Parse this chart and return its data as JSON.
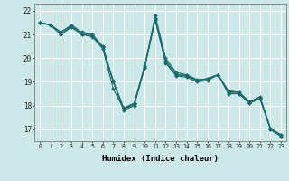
{
  "title": "",
  "xlabel": "Humidex (Indice chaleur)",
  "background_color": "#cce8e8",
  "grid_color": "#ffffff",
  "line_color": "#1a6b6b",
  "xlim": [
    -0.5,
    23.5
  ],
  "ylim": [
    16.5,
    22.3
  ],
  "yticks": [
    17,
    18,
    19,
    20,
    21,
    22
  ],
  "xtick_labels": [
    "0",
    "1",
    "2",
    "3",
    "4",
    "5",
    "6",
    "7",
    "8",
    "9",
    "10",
    "11",
    "12",
    "13",
    "14",
    "15",
    "16",
    "17",
    "18",
    "19",
    "20",
    "21",
    "22",
    "23"
  ],
  "series": [
    [
      21.5,
      21.4,
      21.1,
      21.4,
      21.1,
      21.0,
      20.5,
      19.0,
      17.8,
      18.0,
      19.6,
      21.8,
      20.0,
      19.4,
      19.3,
      19.1,
      19.1,
      19.3,
      18.5,
      18.5,
      18.1,
      18.3,
      17.0,
      16.7
    ],
    [
      21.5,
      21.4,
      21.0,
      21.35,
      21.0,
      20.95,
      20.45,
      19.0,
      17.85,
      18.1,
      19.65,
      21.65,
      19.85,
      19.3,
      19.25,
      19.05,
      19.15,
      19.3,
      18.6,
      18.55,
      18.15,
      18.35,
      17.05,
      16.75
    ],
    [
      21.5,
      21.4,
      21.1,
      21.35,
      21.05,
      21.0,
      20.45,
      19.05,
      17.9,
      18.1,
      19.67,
      21.7,
      19.9,
      19.32,
      19.27,
      19.07,
      19.12,
      19.3,
      18.62,
      18.57,
      18.17,
      18.37,
      17.05,
      16.77
    ],
    [
      21.5,
      21.4,
      21.0,
      21.3,
      21.0,
      20.9,
      20.4,
      18.7,
      17.85,
      18.05,
      19.6,
      21.6,
      19.8,
      19.25,
      19.2,
      19.0,
      19.05,
      19.3,
      18.55,
      18.5,
      18.1,
      18.3,
      17.0,
      16.7
    ]
  ]
}
